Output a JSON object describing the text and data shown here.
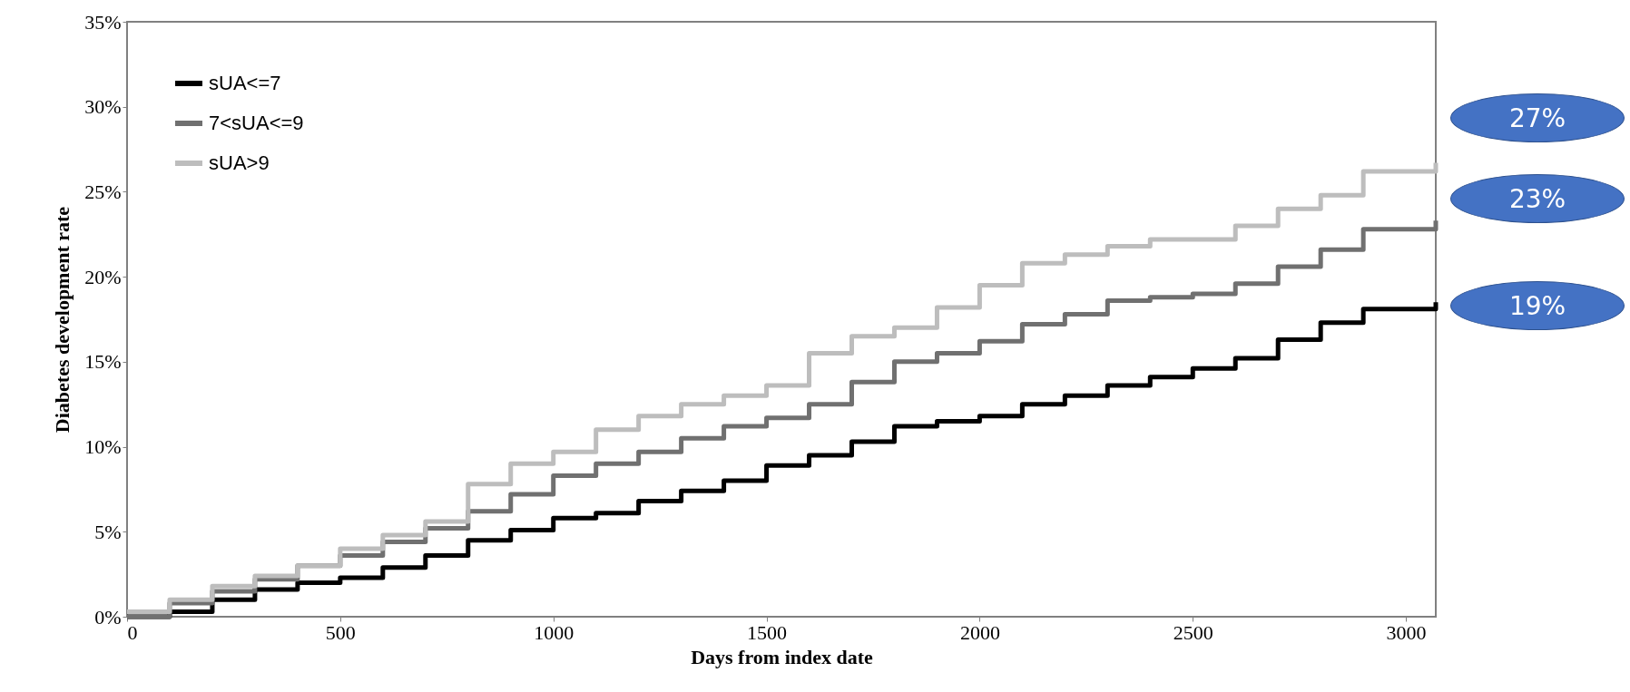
{
  "chart_data": {
    "type": "step",
    "xlabel": "Days from index date",
    "ylabel": "Diabetes development rate",
    "xlim": [
      0,
      3070
    ],
    "xticks": [
      0,
      500,
      1000,
      1500,
      2000,
      2500,
      3000
    ],
    "ylim": [
      0,
      35
    ],
    "yticks": [
      {
        "value": 0,
        "label": "0%"
      },
      {
        "value": 5,
        "label": "5%"
      },
      {
        "value": 10,
        "label": "10%"
      },
      {
        "value": 15,
        "label": "15%"
      },
      {
        "value": 20,
        "label": "20%"
      },
      {
        "value": 25,
        "label": "25%"
      },
      {
        "value": 30,
        "label": "30%"
      },
      {
        "value": 35,
        "label": "35%"
      }
    ],
    "x": [
      0,
      100,
      200,
      300,
      400,
      500,
      600,
      700,
      800,
      900,
      1000,
      1100,
      1200,
      1300,
      1400,
      1500,
      1600,
      1700,
      1800,
      1900,
      2000,
      2100,
      2200,
      2300,
      2400,
      2500,
      2600,
      2700,
      2800,
      2900,
      3070
    ],
    "series": [
      {
        "name": "sUA<=7",
        "color": "#000000",
        "values": [
          0,
          0.3,
          1,
          1.6,
          2,
          2.3,
          2.9,
          3.6,
          4.5,
          5.1,
          5.8,
          6.1,
          6.8,
          7.4,
          8,
          8.9,
          9.5,
          10.3,
          11.2,
          11.5,
          11.8,
          12.5,
          13,
          13.6,
          14.1,
          14.6,
          15.2,
          16.3,
          17.3,
          18.1,
          18.5
        ]
      },
      {
        "name": "7<sUA<=9",
        "color": "#707070",
        "values": [
          0,
          0.8,
          1.5,
          2.2,
          3,
          3.6,
          4.4,
          5.2,
          6.2,
          7.2,
          8.3,
          9,
          9.7,
          10.5,
          11.2,
          11.7,
          12.5,
          13.8,
          15,
          15.5,
          16.2,
          17.2,
          17.8,
          18.6,
          18.8,
          19,
          19.6,
          20.6,
          21.6,
          22.8,
          23.3
        ]
      },
      {
        "name": "sUA>9",
        "color": "#bdbdbd",
        "values": [
          0.3,
          1,
          1.8,
          2.4,
          3,
          4,
          4.8,
          5.6,
          7.8,
          9,
          9.7,
          11,
          11.8,
          12.5,
          13,
          13.6,
          15.5,
          16.5,
          17,
          18.2,
          19.5,
          20.8,
          21.3,
          21.8,
          22.2,
          22.2,
          23,
          24,
          24.8,
          26.2,
          26.7
        ]
      }
    ],
    "legend": "top left",
    "grid": false,
    "annotations": [
      "27%",
      "23%",
      "19%"
    ]
  }
}
